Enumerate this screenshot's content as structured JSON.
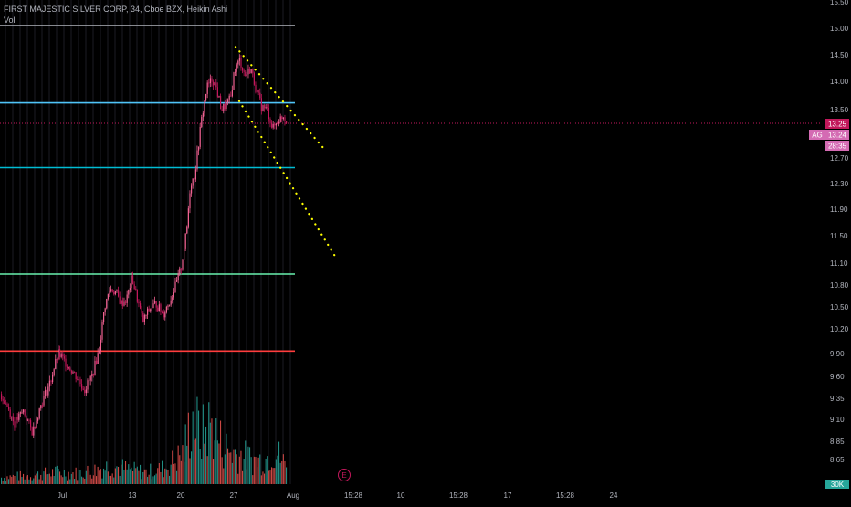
{
  "legend": {
    "title": "FIRST MAJESTIC SILVER CORP, 34, Cboe BZX, Heikin Ashi",
    "vol_label": "Vol"
  },
  "colors": {
    "background": "#000000",
    "grid": "#1c1c24",
    "axis_text": "#b2b5be",
    "up_candle": "#f06292",
    "down_candle": "#c2185b",
    "volume_up": "#26a69a",
    "volume_down": "#ef5350",
    "price_line": "#c2185b",
    "price_tag": "#c2185b",
    "symbol_tag": "#d46bb3",
    "trendline": "#ffff00",
    "earnings": "#c2185b"
  },
  "axes": {
    "y_ticks": [
      "15.50",
      "15.00",
      "14.50",
      "14.00",
      "13.50",
      "13.00",
      "12.70",
      "12.30",
      "11.90",
      "11.50",
      "11.10",
      "10.80",
      "10.50",
      "10.20",
      "9.90",
      "9.60",
      "9.35",
      "9.10",
      "8.85",
      "8.65"
    ],
    "x_ticks": [
      "Jul",
      "13",
      "20",
      "27",
      "Aug",
      "15:28",
      "10",
      "15:28",
      "17",
      "15:28",
      "24"
    ]
  },
  "price_tags": {
    "last_price": "13.25",
    "symbol": "AG",
    "symbol_price": "13.24",
    "countdown": "28:35"
  },
  "volume_tag": "30K",
  "earnings_marker": "E",
  "chart_data": {
    "type": "candlestick",
    "title": "FIRST MAJESTIC SILVER CORP, 34, Cboe BZX, Heikin Ashi",
    "scale": "log",
    "y_range": [
      8.5,
      15.5
    ],
    "horizontal_levels": [
      {
        "price": 15.05,
        "color": "#b2b5be"
      },
      {
        "price": 13.62,
        "color": "#4fc3f7"
      },
      {
        "price": 12.55,
        "color": "#00bcd4"
      },
      {
        "price": 10.95,
        "color": "#69f0ae"
      },
      {
        "price": 9.93,
        "color": "#ff3d3d"
      }
    ],
    "last_price": 13.25,
    "price_path": [
      [
        0,
        9.4
      ],
      [
        8,
        9.25
      ],
      [
        15,
        9.05
      ],
      [
        25,
        9.2
      ],
      [
        35,
        8.95
      ],
      [
        45,
        9.3
      ],
      [
        55,
        9.55
      ],
      [
        63,
        9.9
      ],
      [
        70,
        9.8
      ],
      [
        80,
        9.65
      ],
      [
        92,
        9.45
      ],
      [
        100,
        9.6
      ],
      [
        108,
        9.95
      ],
      [
        114,
        10.5
      ],
      [
        120,
        10.75
      ],
      [
        126,
        10.7
      ],
      [
        132,
        10.55
      ],
      [
        138,
        10.6
      ],
      [
        144,
        10.9
      ],
      [
        150,
        10.6
      ],
      [
        156,
        10.3
      ],
      [
        162,
        10.45
      ],
      [
        170,
        10.55
      ],
      [
        178,
        10.4
      ],
      [
        186,
        10.6
      ],
      [
        192,
        10.8
      ],
      [
        198,
        11.05
      ],
      [
        204,
        11.6
      ],
      [
        208,
        12.3
      ],
      [
        212,
        12.4
      ],
      [
        216,
        12.8
      ],
      [
        220,
        13.3
      ],
      [
        226,
        13.9
      ],
      [
        232,
        14.05
      ],
      [
        236,
        13.9
      ],
      [
        242,
        13.5
      ],
      [
        248,
        13.6
      ],
      [
        252,
        13.7
      ],
      [
        256,
        14.2
      ],
      [
        262,
        14.4
      ],
      [
        268,
        14.1
      ],
      [
        274,
        14.25
      ],
      [
        280,
        13.85
      ],
      [
        286,
        13.55
      ],
      [
        292,
        13.5
      ],
      [
        298,
        13.15
      ],
      [
        304,
        13.3
      ],
      [
        310,
        13.4
      ],
      [
        314,
        13.24
      ]
    ],
    "volume_profile": [
      [
        0,
        10
      ],
      [
        40,
        14
      ],
      [
        60,
        18
      ],
      [
        80,
        16
      ],
      [
        100,
        20
      ],
      [
        120,
        28
      ],
      [
        140,
        22
      ],
      [
        160,
        18
      ],
      [
        180,
        24
      ],
      [
        200,
        46
      ],
      [
        210,
        100
      ],
      [
        220,
        72
      ],
      [
        230,
        90
      ],
      [
        240,
        65
      ],
      [
        250,
        50
      ],
      [
        260,
        45
      ],
      [
        270,
        40
      ],
      [
        280,
        35
      ],
      [
        290,
        38
      ],
      [
        300,
        52
      ],
      [
        314,
        25
      ]
    ],
    "trendlines": [
      {
        "from": [
          "2023-07-26",
          14.65
        ],
        "to": [
          "2023-08-03",
          12.8
        ],
        "style": "dotted",
        "color": "#ffff00"
      },
      {
        "from": [
          "2023-07-26",
          13.65
        ],
        "to": [
          "2023-08-04",
          11.2
        ],
        "style": "dotted",
        "color": "#ffff00"
      }
    ]
  }
}
